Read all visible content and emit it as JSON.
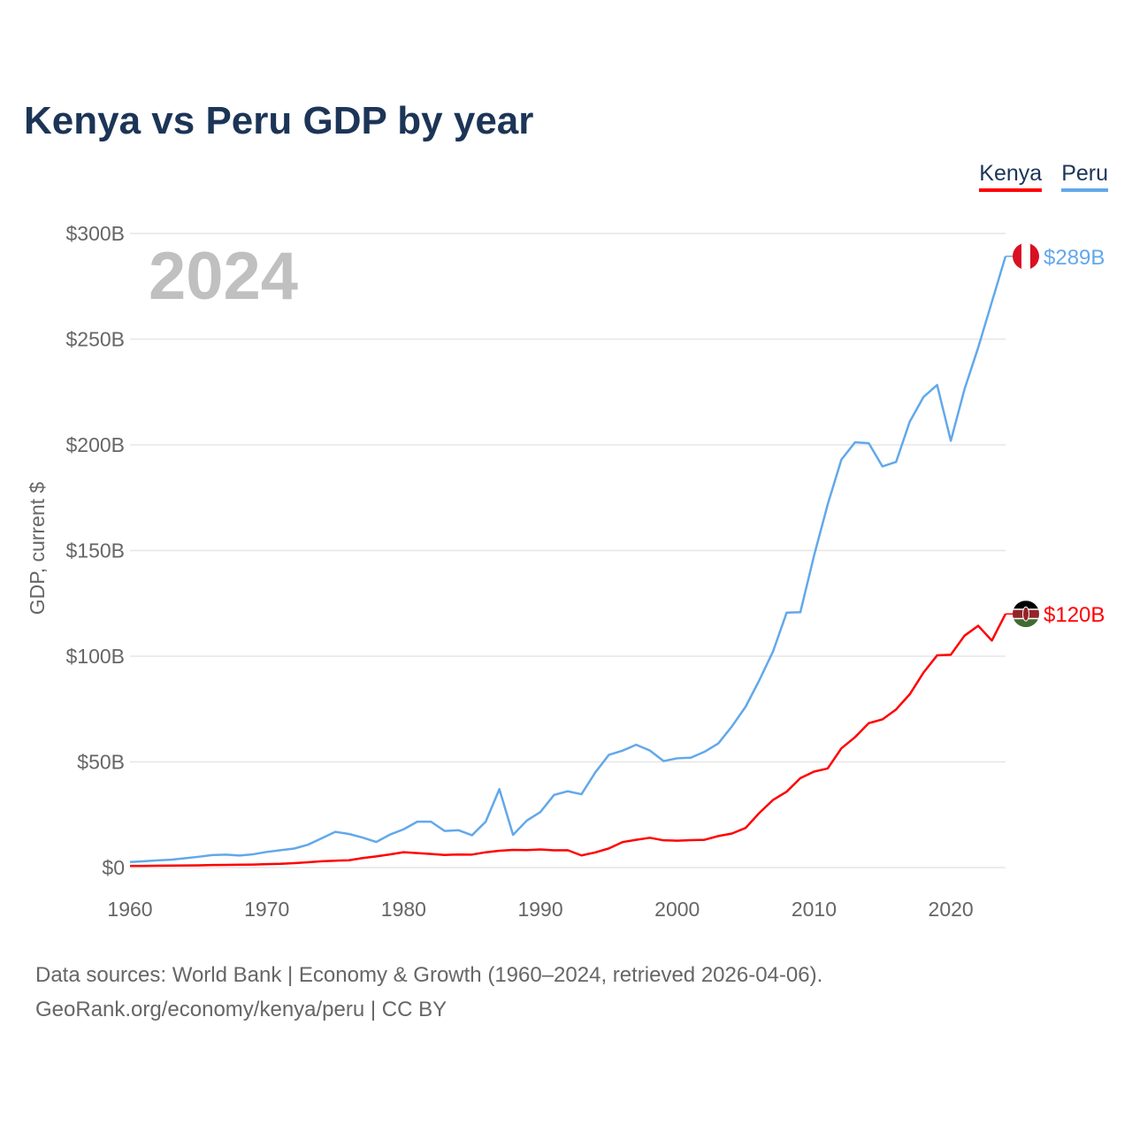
{
  "title": "Kenya vs Peru GDP by year",
  "legend": [
    "Kenya",
    "Peru"
  ],
  "year_label": "2024",
  "source_line1": "Data sources: World Bank | Economy & Growth (1960–2024, retrieved 2026-04-06).",
  "source_line2": "GeoRank.org/economy/kenya/peru | CC BY",
  "colors": {
    "Kenya": "#ff0000",
    "Peru": "#62a8ea",
    "title": "#1c3557"
  },
  "chart_data": {
    "type": "line",
    "title": "Kenya vs Peru GDP by year",
    "xlabel": "",
    "ylabel": "GDP, current $",
    "xlim": [
      1960,
      2024
    ],
    "ylim": [
      0,
      300
    ],
    "x_ticks": [
      1960,
      1970,
      1980,
      1990,
      2000,
      2010,
      2020
    ],
    "y_ticks": [
      0,
      50,
      100,
      150,
      200,
      250,
      300
    ],
    "y_tick_labels": [
      "$0",
      "$50B",
      "$100B",
      "$150B",
      "$200B",
      "$250B",
      "$300B"
    ],
    "grid": true,
    "legend_position": "top-right",
    "end_labels": {
      "Peru": "$289B",
      "Kenya": "$120B"
    },
    "x_start": 1960,
    "series": [
      {
        "name": "Kenya",
        "values": [
          0.79,
          0.79,
          0.87,
          0.93,
          0.99,
          1.02,
          1.18,
          1.24,
          1.35,
          1.41,
          1.6,
          1.78,
          2.11,
          2.5,
          2.97,
          3.26,
          3.47,
          4.49,
          5.3,
          6.23,
          7.27,
          6.85,
          6.43,
          5.98,
          6.19,
          6.14,
          7.24,
          7.97,
          8.36,
          8.28,
          8.57,
          8.15,
          8.21,
          5.75,
          7.15,
          9.05,
          12.05,
          13.12,
          14.09,
          12.9,
          12.71,
          12.99,
          13.15,
          14.9,
          16.1,
          18.74,
          25.83,
          31.96,
          35.9,
          42.3,
          45.4,
          46.9,
          56.4,
          61.7,
          68.3,
          70.1,
          74.8,
          82.0,
          92.2,
          100.4,
          100.7,
          109.7,
          114.4,
          107.4,
          120.0
        ]
      },
      {
        "name": "Peru",
        "values": [
          2.6,
          3.0,
          3.4,
          3.7,
          4.4,
          5.1,
          5.9,
          6.1,
          5.7,
          6.3,
          7.4,
          8.2,
          9.0,
          10.8,
          13.8,
          16.9,
          15.9,
          14.2,
          12.1,
          15.6,
          18.1,
          21.7,
          21.7,
          17.3,
          17.7,
          15.3,
          21.7,
          37.1,
          15.5,
          22.2,
          26.3,
          34.4,
          36.1,
          34.7,
          44.9,
          53.3,
          55.3,
          58.1,
          55.4,
          50.4,
          51.7,
          52.0,
          54.8,
          58.7,
          66.8,
          76.1,
          88.6,
          102.2,
          120.6,
          120.8,
          147.5,
          171.8,
          193.0,
          201.2,
          200.8,
          189.8,
          191.9,
          211.0,
          222.6,
          228.3,
          201.9,
          226.3,
          246.0,
          267.6,
          289.2
        ]
      }
    ]
  }
}
